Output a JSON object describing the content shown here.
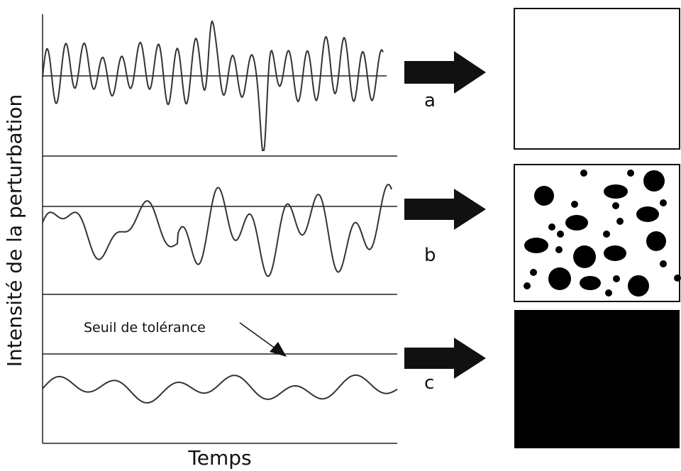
{
  "axes": {
    "y_label": "Intensité de la perturbation",
    "x_label": "Temps"
  },
  "annotation": "Seuil de tolérance",
  "panels": [
    {
      "label": "a"
    },
    {
      "label": "b"
    },
    {
      "label": "c"
    }
  ]
}
